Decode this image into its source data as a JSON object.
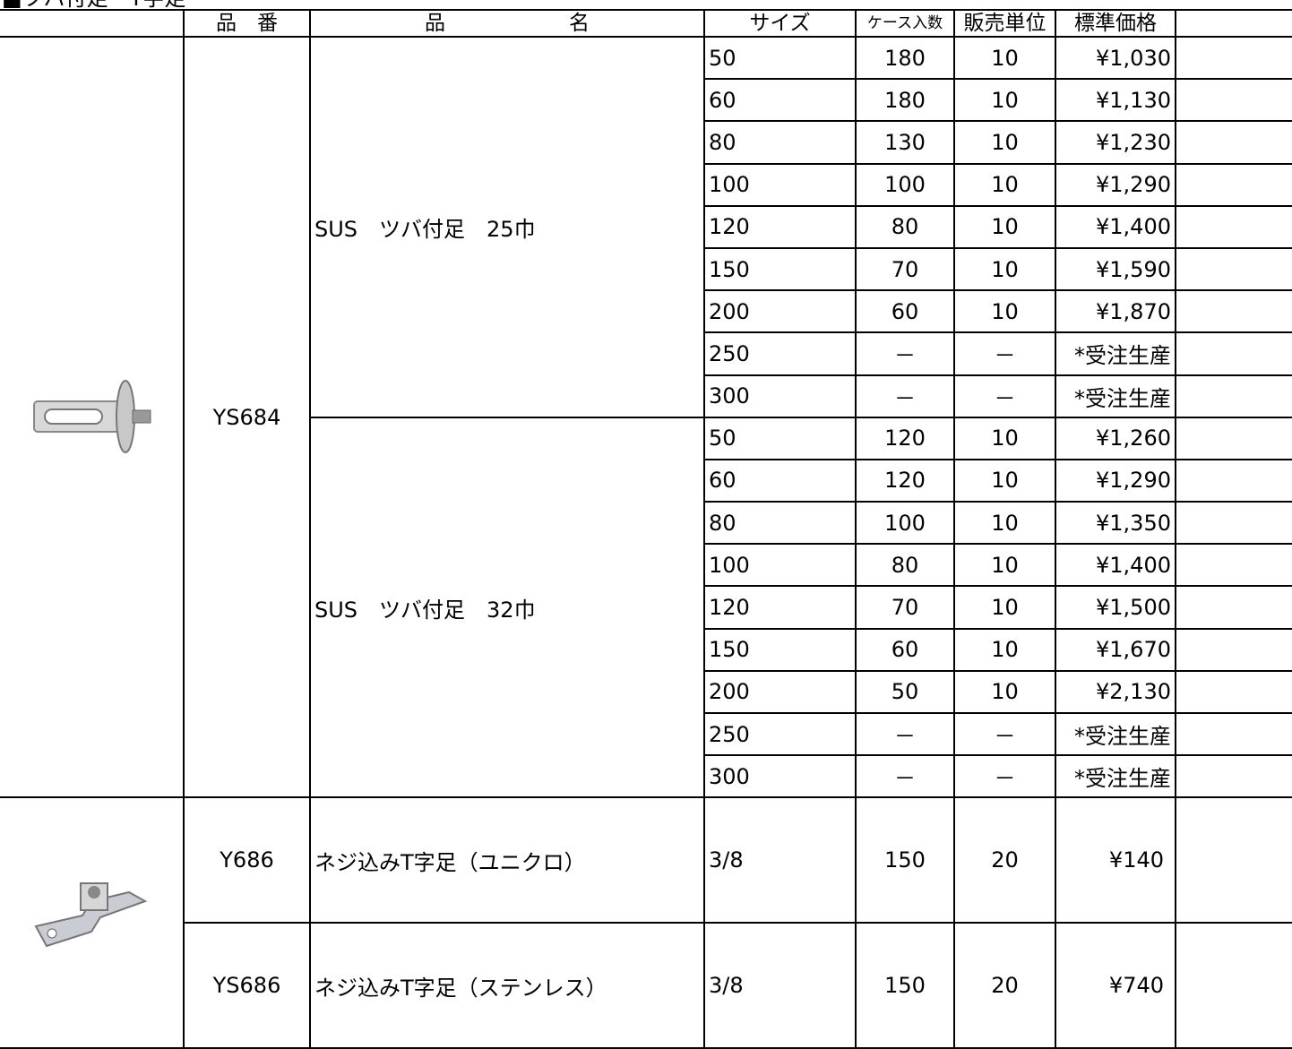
{
  "header": {
    "title": "■ツバ付足・T字足"
  },
  "table": {
    "columns": [
      "品　番",
      "品　　　　　　名",
      "サイズ",
      "ケース入数",
      "販売単位",
      "標準価格"
    ],
    "groups": [
      {
        "code": "YS684",
        "items": [
          {
            "name": "SUS　ツバ付足　25巾",
            "rows": [
              [
                "50",
                "180",
                "10",
                "¥1,030"
              ],
              [
                "60",
                "180",
                "10",
                "¥1,130"
              ],
              [
                "80",
                "130",
                "10",
                "¥1,230"
              ],
              [
                "100",
                "100",
                "10",
                "¥1,290"
              ],
              [
                "120",
                "80",
                "10",
                "¥1,400"
              ],
              [
                "150",
                "70",
                "10",
                "¥1,590"
              ],
              [
                "200",
                "60",
                "10",
                "¥1,870"
              ],
              [
                "250",
                "－",
                "－",
                "*受注生産"
              ],
              [
                "300",
                "－",
                "－",
                "*受注生産"
              ]
            ]
          },
          {
            "name": "SUS　ツバ付足　32巾",
            "rows": [
              [
                "50",
                "120",
                "10",
                "¥1,260"
              ],
              [
                "60",
                "120",
                "10",
                "¥1,290"
              ],
              [
                "80",
                "100",
                "10",
                "¥1,350"
              ],
              [
                "100",
                "80",
                "10",
                "¥1,400"
              ],
              [
                "120",
                "70",
                "10",
                "¥1,500"
              ],
              [
                "150",
                "60",
                "10",
                "¥1,670"
              ],
              [
                "200",
                "50",
                "10",
                "¥2,130"
              ],
              [
                "250",
                "－",
                "－",
                "*受注生産"
              ],
              [
                "300",
                "－",
                "－",
                "*受注生産"
              ]
            ]
          }
        ]
      },
      {
        "code": "Y686",
        "items": [
          {
            "name": "ネジ込みT字足（ユニクロ）",
            "rows": [
              [
                "3/8",
                "150",
                "20",
                "¥140"
              ]
            ]
          }
        ]
      },
      {
        "code": "YS686",
        "items": [
          {
            "name": "ネジ込みT字足（ステンレス）",
            "rows": [
              [
                "3/8",
                "150",
                "20",
                "¥740"
              ]
            ]
          }
        ]
      }
    ]
  }
}
